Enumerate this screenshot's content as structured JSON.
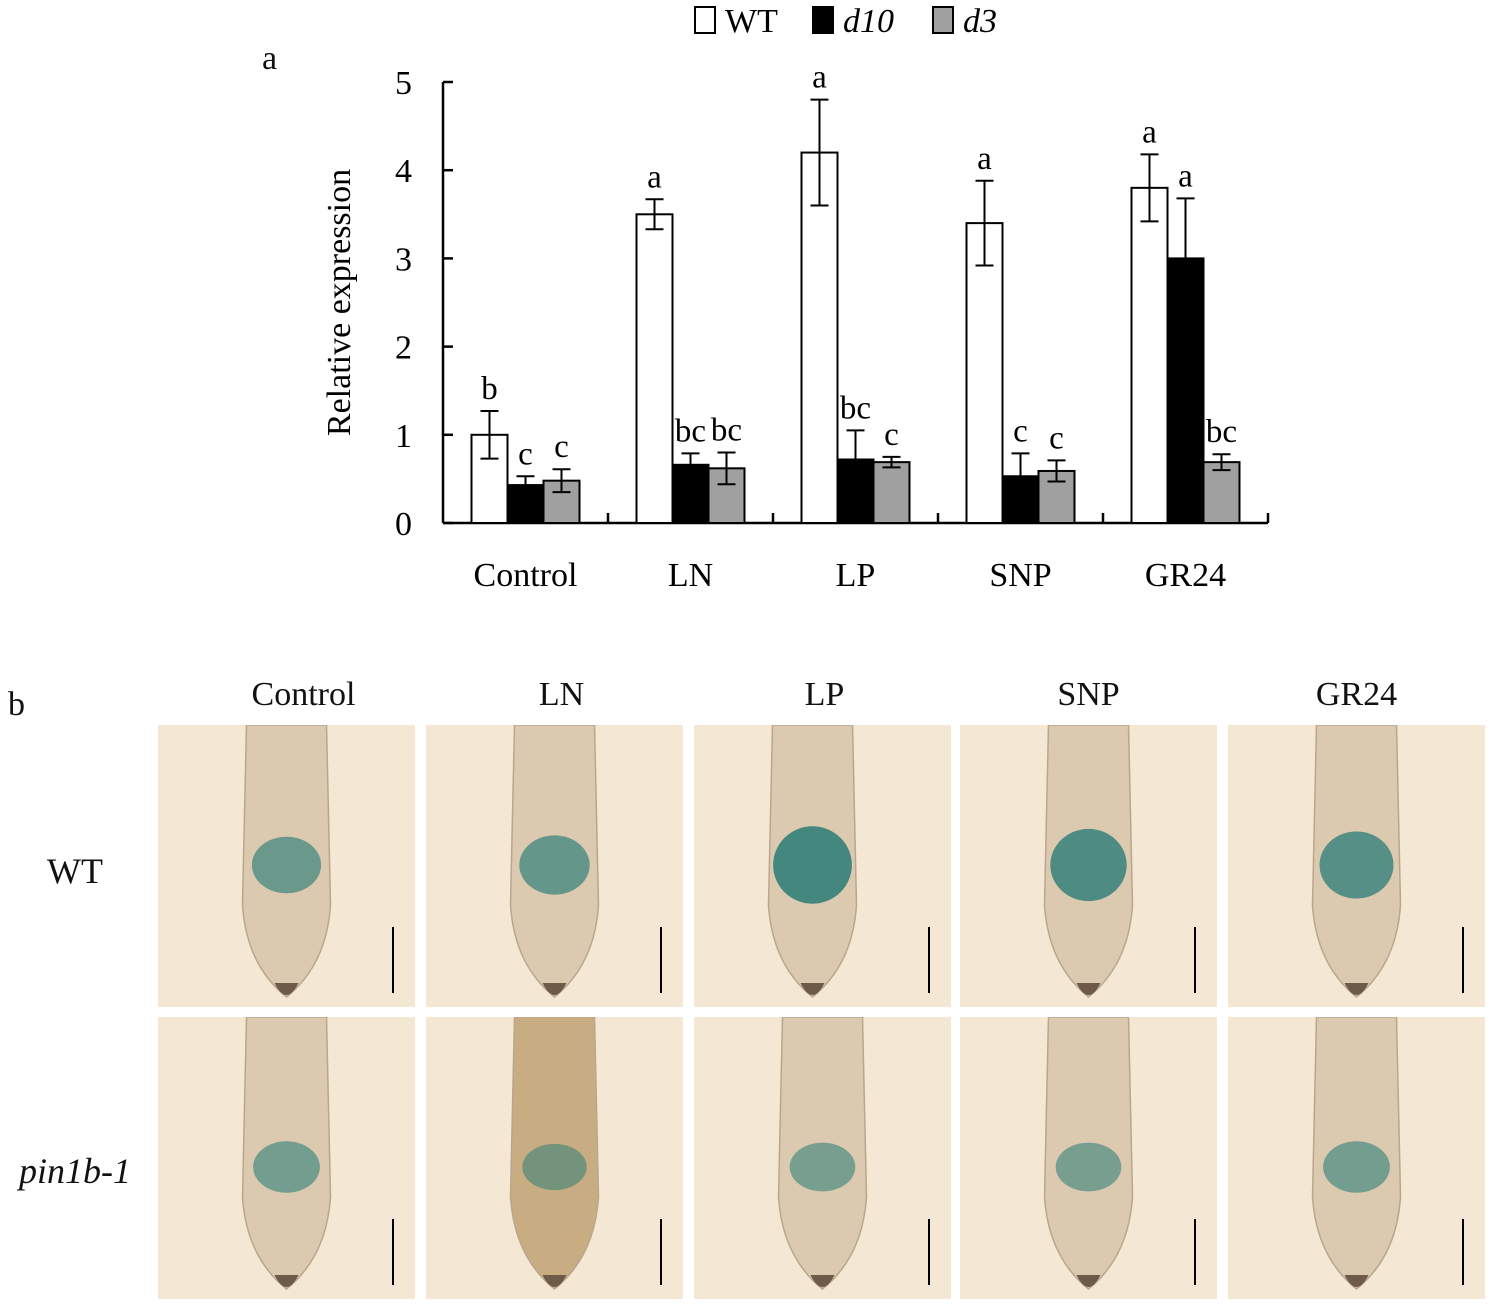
{
  "panel_a_label": "a",
  "panel_b_label": "b",
  "chart_data": {
    "type": "bar",
    "title": "",
    "xlabel": "",
    "ylabel": "Relative expression",
    "ylim": [
      0,
      5
    ],
    "yticks": [
      "0",
      "1",
      "2",
      "3",
      "4",
      "5"
    ],
    "categories": [
      "Control",
      "LN",
      "LP",
      "SNP",
      "GR24"
    ],
    "legend_position": "top",
    "series": [
      {
        "name": "WT",
        "italic": false,
        "color": "#ffffff",
        "values": [
          1.0,
          3.5,
          4.2,
          3.4,
          3.8
        ],
        "errors": [
          0.27,
          0.17,
          0.6,
          0.48,
          0.38
        ],
        "letters": [
          "b",
          "a",
          "a",
          "a",
          "a"
        ]
      },
      {
        "name": "d10",
        "italic": true,
        "color": "#000000",
        "values": [
          0.43,
          0.66,
          0.72,
          0.53,
          3.0
        ],
        "errors": [
          0.1,
          0.13,
          0.33,
          0.26,
          0.68
        ],
        "letters": [
          "c",
          "bc",
          "bc",
          "c",
          "a"
        ]
      },
      {
        "name": "d3",
        "italic": true,
        "color": "#a0a0a0",
        "values": [
          0.48,
          0.62,
          0.69,
          0.59,
          0.69
        ],
        "errors": [
          0.13,
          0.18,
          0.06,
          0.12,
          0.09
        ],
        "letters": [
          "c",
          "bc",
          "c",
          "c",
          "bc"
        ]
      }
    ]
  },
  "panel_b": {
    "columns": [
      "Control",
      "LN",
      "LP",
      "SNP",
      "GR24"
    ],
    "rows": [
      {
        "label": "WT",
        "italic": false
      },
      {
        "label": "pin1b-1",
        "italic": true
      }
    ],
    "stain_color": "#2c7d78",
    "background_color": "#f4e7d3",
    "stain_intensity": [
      [
        0.55,
        0.6,
        0.95,
        0.85,
        0.75
      ],
      [
        0.45,
        0.35,
        0.4,
        0.4,
        0.45
      ]
    ]
  }
}
